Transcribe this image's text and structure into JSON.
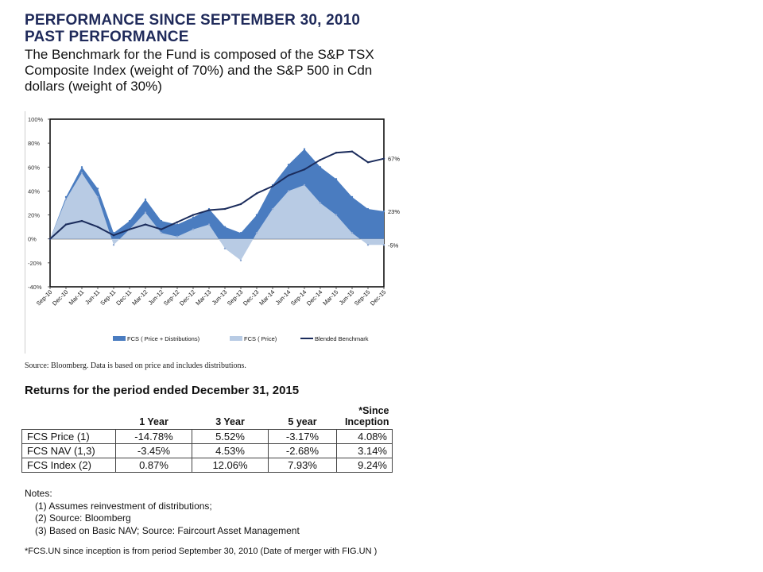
{
  "header": {
    "title_line1": "PERFORMANCE SINCE SEPTEMBER 30, 2010",
    "title_line2": "PAST PERFORMANCE",
    "subtitle": "The Benchmark for the Fund is composed of the S&P TSX Composite Index (weight of 70%) and the S&P 500 in Cdn dollars (weight of 30%)"
  },
  "colors": {
    "price_dist": "#4a7cc0",
    "price": "#b8cbe4",
    "benchmark": "#1b2c5c",
    "title": "#1f2a5a"
  },
  "chart_data": {
    "type": "area",
    "ylim": [
      -40,
      100
    ],
    "y_ticks": [
      "100%",
      "80%",
      "60%",
      "40%",
      "20%",
      "0%",
      "-20%",
      "-40%"
    ],
    "y_tick_values": [
      100,
      80,
      60,
      40,
      20,
      0,
      -20,
      -40
    ],
    "x_ticks": [
      "Sep-10",
      "Dec-10",
      "Mar-11",
      "Jun-11",
      "Sep-11",
      "Dec-11",
      "Mar-12",
      "Jun-12",
      "Sep-12",
      "Dec-12",
      "Mar-13",
      "Jun-13",
      "Sep-13",
      "Dec-13",
      "Mar-14",
      "Jun-14",
      "Sep-14",
      "Dec-14",
      "Mar-15",
      "Jun-15",
      "Sep-15",
      "Dec-15"
    ],
    "x": [
      "Sep-10",
      "Dec-10",
      "Mar-11",
      "Jun-11",
      "Sep-11",
      "Dec-11",
      "Mar-12",
      "Jun-12",
      "Sep-12",
      "Dec-12",
      "Mar-13",
      "Jun-13",
      "Sep-13",
      "Dec-13",
      "Mar-14",
      "Jun-14",
      "Sep-14",
      "Dec-14",
      "Mar-15",
      "Jun-15",
      "Sep-15",
      "Dec-15"
    ],
    "series": [
      {
        "name": "FCS ( Price + Distributions)",
        "kind": "area",
        "values": [
          0,
          35,
          60,
          42,
          5,
          15,
          33,
          15,
          12,
          18,
          25,
          10,
          5,
          20,
          45,
          62,
          75,
          60,
          50,
          35,
          25,
          23
        ]
      },
      {
        "name": "FCS ( Price)",
        "kind": "area",
        "values": [
          0,
          33,
          55,
          35,
          -5,
          8,
          22,
          5,
          2,
          8,
          12,
          -8,
          -18,
          5,
          25,
          40,
          45,
          30,
          20,
          5,
          -5,
          -5
        ]
      },
      {
        "name": "Blended Benchmark",
        "kind": "line",
        "values": [
          0,
          12,
          15,
          10,
          3,
          8,
          12,
          8,
          14,
          20,
          24,
          25,
          29,
          38,
          44,
          53,
          58,
          66,
          72,
          73,
          64,
          67
        ]
      }
    ],
    "end_labels": [
      "67%",
      "23%",
      "-5%"
    ],
    "legend_placement": "bottom"
  },
  "source_note": "Source: Bloomberg. Data is based on price and includes distributions.",
  "returns": {
    "title": "Returns for the period ended December 31, 2015",
    "headers": [
      "1 Year",
      "3 Year",
      "5 year",
      "*Since Inception"
    ],
    "rows": [
      {
        "label": "FCS Price  (1)",
        "values": [
          "-14.78%",
          "5.52%",
          "-3.17%",
          "4.08%"
        ]
      },
      {
        "label": "FCS NAV  (1,3)",
        "values": [
          "-3.45%",
          "4.53%",
          "-2.68%",
          "3.14%"
        ]
      },
      {
        "label": "FCS Index  (2)",
        "values": [
          "0.87%",
          "12.06%",
          "7.93%",
          "9.24%"
        ]
      }
    ]
  },
  "notes": {
    "heading": "Notes:",
    "items": [
      "(1) Assumes reinvestment of distributions;",
      "(2) Source: Bloomberg",
      "(3) Based on Basic NAV; Source: Faircourt Asset Management"
    ]
  },
  "footnote": "*FCS.UN  since inception is from period September 30, 2010 (Date of merger with FIG.UN )"
}
